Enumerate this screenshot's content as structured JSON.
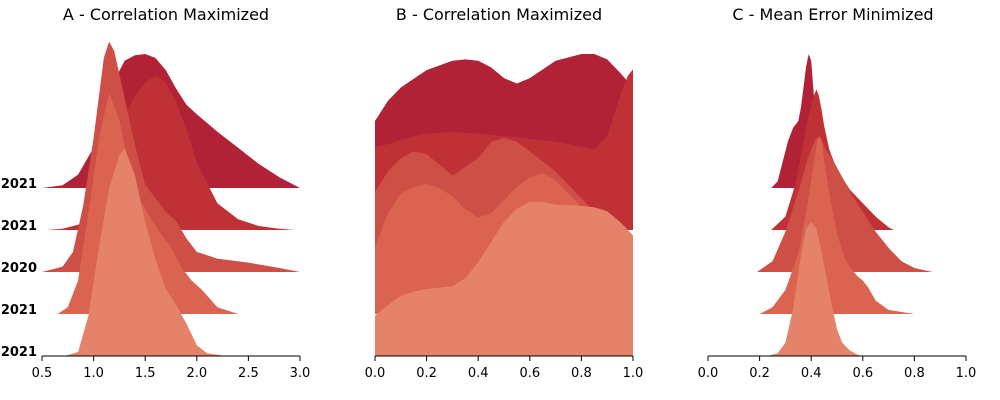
{
  "chart_data": [
    {
      "type": "area",
      "title": "A - Correlation Maximized",
      "xlim": [
        0.5,
        3.0
      ],
      "x_ticks": [
        "0.5",
        "1.0",
        "1.5",
        "2.0",
        "2.5",
        "3.0"
      ],
      "row_labels": [
        "2021",
        "2021",
        "2020",
        "2021",
        "2021"
      ],
      "series": [
        {
          "color": "#b22236",
          "x": [
            0.5,
            0.7,
            0.85,
            1.0,
            1.1,
            1.2,
            1.3,
            1.4,
            1.5,
            1.6,
            1.7,
            1.8,
            1.9,
            2.0,
            2.2,
            2.4,
            2.6,
            2.8,
            3.0
          ],
          "y": [
            0,
            0.02,
            0.1,
            0.3,
            0.55,
            0.8,
            0.95,
            0.99,
            1.0,
            0.97,
            0.88,
            0.74,
            0.62,
            0.55,
            0.42,
            0.3,
            0.18,
            0.08,
            0
          ]
        },
        {
          "color": "#c03136",
          "x": [
            0.55,
            0.7,
            0.9,
            1.0,
            1.1,
            1.2,
            1.3,
            1.4,
            1.5,
            1.6,
            1.7,
            1.8,
            1.9,
            2.0,
            2.2,
            2.4,
            2.6,
            2.8,
            2.95
          ],
          "y": [
            0,
            0.01,
            0.05,
            0.15,
            0.35,
            0.6,
            0.85,
            1.0,
            1.1,
            1.15,
            1.1,
            0.95,
            0.75,
            0.5,
            0.2,
            0.08,
            0.03,
            0.01,
            0
          ]
        },
        {
          "color": "#ce4f45",
          "x": [
            0.5,
            0.7,
            0.8,
            0.9,
            1.0,
            1.1,
            1.15,
            1.2,
            1.3,
            1.4,
            1.5,
            1.6,
            1.7,
            1.8,
            1.9,
            2.0,
            2.2,
            2.5,
            2.8,
            3.0
          ],
          "y": [
            0,
            0.04,
            0.15,
            0.5,
            1.0,
            1.6,
            1.72,
            1.65,
            1.3,
            0.95,
            0.65,
            0.55,
            0.45,
            0.38,
            0.25,
            0.15,
            0.1,
            0.07,
            0.03,
            0
          ]
        },
        {
          "color": "#db6450",
          "x": [
            0.65,
            0.75,
            0.85,
            0.95,
            1.05,
            1.15,
            1.25,
            1.35,
            1.45,
            1.55,
            1.65,
            1.75,
            1.85,
            1.95,
            2.05,
            2.2,
            2.4
          ],
          "y": [
            0,
            0.05,
            0.25,
            0.75,
            1.3,
            1.65,
            1.45,
            1.05,
            0.85,
            0.72,
            0.6,
            0.5,
            0.35,
            0.25,
            0.18,
            0.05,
            0
          ]
        },
        {
          "color": "#e5836a",
          "x": [
            0.72,
            0.85,
            0.95,
            1.05,
            1.15,
            1.25,
            1.3,
            1.4,
            1.5,
            1.6,
            1.7,
            1.8,
            1.9,
            2.0,
            2.1,
            2.28
          ],
          "y": [
            0,
            0.03,
            0.3,
            0.8,
            1.25,
            1.5,
            1.55,
            1.35,
            1.0,
            0.72,
            0.5,
            0.38,
            0.24,
            0.08,
            0.02,
            0
          ]
        }
      ]
    },
    {
      "type": "area",
      "title": "B - Correlation Maximized",
      "xlim": [
        0.0,
        1.0
      ],
      "x_ticks": [
        "0.0",
        "0.2",
        "0.4",
        "0.6",
        "0.8",
        "1.0"
      ],
      "series": [
        {
          "color": "#b22236",
          "x": [
            0.0,
            0.05,
            0.1,
            0.2,
            0.3,
            0.35,
            0.4,
            0.45,
            0.5,
            0.55,
            0.6,
            0.7,
            0.8,
            0.85,
            0.9,
            0.95,
            1.0
          ],
          "y": [
            0.5,
            0.65,
            0.75,
            0.88,
            0.95,
            0.96,
            0.95,
            0.9,
            0.82,
            0.78,
            0.82,
            0.95,
            1.0,
            1.0,
            0.96,
            0.86,
            0.75
          ]
        },
        {
          "color": "#c03136",
          "x": [
            0.0,
            0.05,
            0.1,
            0.15,
            0.2,
            0.3,
            0.4,
            0.5,
            0.6,
            0.7,
            0.8,
            0.85,
            0.9,
            0.95,
            0.98,
            1.0
          ],
          "y": [
            0.62,
            0.64,
            0.67,
            0.7,
            0.72,
            0.73,
            0.72,
            0.7,
            0.68,
            0.66,
            0.62,
            0.6,
            0.7,
            1.0,
            1.15,
            1.2
          ]
        },
        {
          "color": "#ce4f45",
          "x": [
            0.0,
            0.05,
            0.1,
            0.15,
            0.2,
            0.25,
            0.3,
            0.4,
            0.45,
            0.5,
            0.55,
            0.6,
            0.7,
            0.8,
            0.9,
            1.0
          ],
          "y": [
            0.6,
            0.75,
            0.85,
            0.9,
            0.88,
            0.8,
            0.72,
            0.85,
            0.97,
            1.0,
            0.97,
            0.9,
            0.75,
            0.55,
            0.35,
            0.15
          ]
        },
        {
          "color": "#db6450",
          "x": [
            0.0,
            0.05,
            0.1,
            0.15,
            0.2,
            0.25,
            0.3,
            0.35,
            0.4,
            0.45,
            0.5,
            0.55,
            0.6,
            0.65,
            0.7,
            0.8,
            0.9,
            1.0
          ],
          "y": [
            0.5,
            0.75,
            0.9,
            0.95,
            0.97,
            0.94,
            0.88,
            0.78,
            0.72,
            0.75,
            0.85,
            0.95,
            1.02,
            1.05,
            1.0,
            0.8,
            0.55,
            0.4
          ]
        },
        {
          "color": "#e5836a",
          "x": [
            0.0,
            0.05,
            0.1,
            0.15,
            0.2,
            0.3,
            0.35,
            0.4,
            0.45,
            0.5,
            0.55,
            0.6,
            0.65,
            0.7,
            0.8,
            0.85,
            0.9,
            0.95,
            1.0
          ],
          "y": [
            0.3,
            0.38,
            0.45,
            0.48,
            0.5,
            0.52,
            0.58,
            0.7,
            0.85,
            1.0,
            1.1,
            1.15,
            1.15,
            1.13,
            1.12,
            1.11,
            1.08,
            1.0,
            0.9
          ]
        }
      ]
    },
    {
      "type": "area",
      "title": "C - Mean Error Minimized",
      "xlim": [
        0.0,
        1.0
      ],
      "x_ticks": [
        "0.0",
        "0.2",
        "0.4",
        "0.6",
        "0.8",
        "1.0"
      ],
      "series": [
        {
          "color": "#b22236",
          "x": [
            0.245,
            0.27,
            0.29,
            0.31,
            0.33,
            0.35,
            0.36,
            0.37,
            0.38,
            0.39,
            0.4,
            0.41,
            0.42,
            0.43,
            0.44,
            0.45,
            0.46,
            0.47
          ],
          "y": [
            0,
            0.05,
            0.2,
            0.35,
            0.45,
            0.5,
            0.6,
            0.75,
            0.9,
            1.0,
            0.95,
            0.7,
            0.45,
            0.2,
            0.08,
            0.04,
            0.01,
            0
          ]
        },
        {
          "color": "#c03136",
          "x": [
            0.245,
            0.3,
            0.34,
            0.37,
            0.39,
            0.4,
            0.41,
            0.42,
            0.43,
            0.44,
            0.45,
            0.47,
            0.5,
            0.55,
            0.6,
            0.65,
            0.7,
            0.72
          ],
          "y": [
            0,
            0.1,
            0.35,
            0.65,
            0.85,
            0.92,
            1.0,
            1.05,
            1.0,
            0.9,
            0.78,
            0.6,
            0.45,
            0.3,
            0.2,
            0.1,
            0.02,
            0
          ]
        },
        {
          "color": "#ce4f45",
          "x": [
            0.19,
            0.25,
            0.3,
            0.35,
            0.38,
            0.4,
            0.42,
            0.44,
            0.46,
            0.48,
            0.5,
            0.55,
            0.6,
            0.65,
            0.7,
            0.75,
            0.8,
            0.87
          ],
          "y": [
            0,
            0.08,
            0.3,
            0.6,
            0.8,
            0.92,
            1.0,
            0.98,
            0.9,
            0.85,
            0.78,
            0.6,
            0.45,
            0.3,
            0.18,
            0.08,
            0.03,
            0
          ]
        },
        {
          "color": "#db6450",
          "x": [
            0.2,
            0.25,
            0.3,
            0.35,
            0.38,
            0.4,
            0.42,
            0.43,
            0.44,
            0.45,
            0.47,
            0.5,
            0.53,
            0.55,
            0.58,
            0.6,
            0.62,
            0.65,
            0.7,
            0.8
          ],
          "y": [
            0,
            0.05,
            0.18,
            0.45,
            0.75,
            1.0,
            1.25,
            1.33,
            1.3,
            1.15,
            0.9,
            0.6,
            0.42,
            0.35,
            0.28,
            0.25,
            0.2,
            0.1,
            0.03,
            0
          ]
        },
        {
          "color": "#e5836a",
          "x": [
            0.23,
            0.27,
            0.3,
            0.33,
            0.36,
            0.38,
            0.4,
            0.42,
            0.44,
            0.46,
            0.48,
            0.5,
            0.52,
            0.55,
            0.58,
            0.6
          ],
          "y": [
            0,
            0.02,
            0.1,
            0.35,
            0.75,
            0.95,
            1.0,
            0.95,
            0.78,
            0.58,
            0.38,
            0.2,
            0.1,
            0.04,
            0.01,
            0
          ]
        }
      ]
    }
  ]
}
